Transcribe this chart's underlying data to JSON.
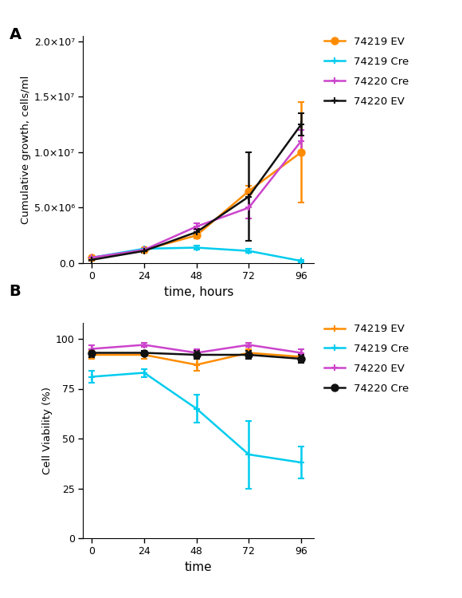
{
  "panel_A": {
    "time": [
      0,
      24,
      48,
      72,
      96
    ],
    "series": {
      "74219 EV": {
        "mean": [
          500000.0,
          1200000.0,
          2500000.0,
          6500000.0,
          10000000.0
        ],
        "err": [
          100000.0,
          200000.0,
          300000.0,
          500000.0,
          4500000.0
        ],
        "color": "#FF8C00",
        "marker": "o"
      },
      "74219 Cre": {
        "mean": [
          500000.0,
          1300000.0,
          1400000.0,
          1100000.0,
          200000.0
        ],
        "err": [
          100000.0,
          100000.0,
          150000.0,
          200000.0,
          100000.0
        ],
        "color": "#00CCEE",
        "marker": "+"
      },
      "74220 Cre": {
        "mean": [
          500000.0,
          1200000.0,
          3300000.0,
          5000000.0,
          11000000.0
        ],
        "err": [
          100000.0,
          200000.0,
          300000.0,
          1000000.0,
          1000000.0
        ],
        "color": "#CC44CC",
        "marker": "+"
      },
      "74220 EV": {
        "mean": [
          300000.0,
          1100000.0,
          2800000.0,
          6000000.0,
          12500000.0
        ],
        "err": [
          50000.0,
          200000.0,
          300000.0,
          4000000.0,
          1000000.0
        ],
        "color": "#111111",
        "marker": "+"
      }
    },
    "ylabel": "Cumulative growth, cells/ml",
    "xlabel": "time, hours",
    "ylim": [
      0,
      20500000.0
    ],
    "yticks": [
      0,
      5000000.0,
      10000000.0,
      15000000.0,
      20000000.0
    ],
    "ytick_labels": [
      "0.0",
      "5.0×10⁶",
      "1.0×10⁷",
      "1.5×10⁷",
      "2.0×10⁷"
    ],
    "xticks": [
      0,
      24,
      48,
      72,
      96
    ]
  },
  "panel_B": {
    "time": [
      0,
      24,
      48,
      72,
      96
    ],
    "series": {
      "74219 EV": {
        "mean": [
          92,
          92,
          87,
          93,
          91
        ],
        "err": [
          2,
          2,
          3,
          2,
          2
        ],
        "color": "#FF8C00",
        "marker": "+"
      },
      "74219 Cre": {
        "mean": [
          81,
          83,
          65,
          42,
          38
        ],
        "err": [
          3,
          2,
          7,
          17,
          8
        ],
        "color": "#00CCEE",
        "marker": "+"
      },
      "74220 EV": {
        "mean": [
          95,
          97,
          93,
          97,
          93
        ],
        "err": [
          2,
          1,
          2,
          1,
          2
        ],
        "color": "#CC44CC",
        "marker": "+"
      },
      "74220 Cre": {
        "mean": [
          93,
          93,
          92,
          92,
          90
        ],
        "err": [
          2,
          1,
          2,
          2,
          2
        ],
        "color": "#111111",
        "marker": "o"
      }
    },
    "ylabel": "Cell Viability (%)",
    "xlabel": "time",
    "ylim": [
      0,
      108
    ],
    "yticks": [
      0,
      25,
      50,
      75,
      100
    ],
    "xticks": [
      0,
      24,
      48,
      72,
      96
    ]
  },
  "legend_order_A": [
    "74219 EV",
    "74219 Cre",
    "74220 Cre",
    "74220 EV"
  ],
  "legend_order_B": [
    "74219 EV",
    "74219 Cre",
    "74220 EV",
    "74220 Cre"
  ],
  "fig_width": 5.8,
  "fig_height": 7.5,
  "dpi": 100
}
